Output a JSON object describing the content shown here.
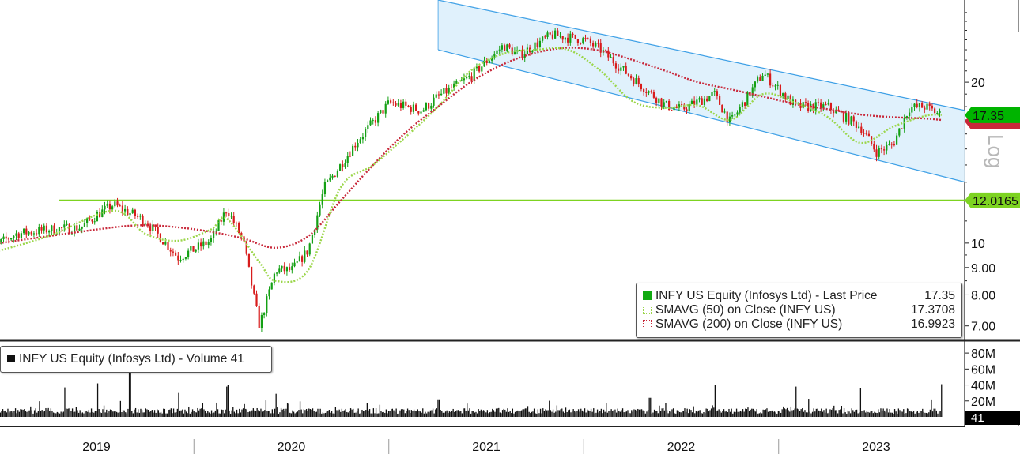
{
  "chart_data": [
    {
      "type": "line",
      "title": "",
      "scale": "log",
      "ylim": [
        6.6,
        28.5
      ],
      "y_ticks": [
        "20",
        "10",
        "9.00",
        "8.00",
        "7.00"
      ],
      "y_tick_values": [
        20,
        10,
        9,
        8,
        7
      ],
      "x_ticks": [
        "2019",
        "2020",
        "2021",
        "2022",
        "2023"
      ],
      "log_label": "Log",
      "series": [
        {
          "name": "INFY US Equity (Infosys Ltd) - Last Price",
          "style": "candlestick",
          "last_value": "17.35",
          "x": [
            "2018-11",
            "2019-01",
            "2019-03",
            "2019-05",
            "2019-06",
            "2019-07",
            "2019-09",
            "2019-11",
            "2020-01",
            "2020-02",
            "2020-03",
            "2020-04",
            "2020-05",
            "2020-06",
            "2020-07",
            "2020-08",
            "2020-09",
            "2020-10",
            "2020-12",
            "2021-02",
            "2021-03",
            "2021-05",
            "2021-07",
            "2021-08",
            "2021-09",
            "2021-10",
            "2021-12",
            "2022-01",
            "2022-03",
            "2022-05",
            "2022-06",
            "2022-08",
            "2022-09",
            "2022-11",
            "2023-01",
            "2023-03",
            "2023-05",
            "2023-06",
            "2023-07",
            "2023-08",
            "2023-09",
            "2023-10"
          ],
          "values": [
            9.6,
            10.4,
            10.6,
            10.7,
            11.3,
            11.8,
            11.0,
            9.4,
            10.1,
            11.6,
            10.1,
            7.0,
            8.9,
            8.9,
            9.7,
            12.7,
            14.0,
            15.5,
            18.3,
            17.7,
            18.8,
            20.5,
            23.4,
            22.5,
            23.5,
            24.5,
            24.0,
            23.0,
            20.3,
            18.1,
            17.8,
            19.0,
            16.8,
            20.8,
            18.0,
            18.0,
            16.5,
            14.8,
            15.3,
            17.9,
            18.0,
            17.35
          ]
        },
        {
          "name": "SMAVG (50)  on Close (INFY US)",
          "last_value": "17.3708",
          "color": "#9bd64a",
          "x": [
            "2018-11",
            "2019-03",
            "2019-07",
            "2019-09",
            "2019-11",
            "2020-01",
            "2020-02",
            "2020-04",
            "2020-05",
            "2020-07",
            "2020-09",
            "2020-11",
            "2021-01",
            "2021-03",
            "2021-05",
            "2021-07",
            "2021-09",
            "2021-11",
            "2022-01",
            "2022-03",
            "2022-05",
            "2022-07",
            "2022-09",
            "2022-11",
            "2023-01",
            "2023-03",
            "2023-05",
            "2023-07",
            "2023-09",
            "2023-10"
          ],
          "values": [
            9.5,
            10.3,
            11.5,
            10.4,
            10.1,
            10.6,
            11.1,
            9.2,
            8.5,
            8.9,
            12.7,
            14.0,
            15.8,
            18.0,
            21.0,
            22.6,
            23.0,
            23.0,
            21.0,
            18.4,
            17.9,
            18.1,
            17.0,
            19.0,
            18.3,
            17.2,
            15.4,
            16.5,
            17.3,
            17.37
          ]
        },
        {
          "name": "SMAVG (200)  on Close (INFY US)",
          "last_value": "16.9923",
          "color": "#c8283a",
          "x": [
            "2018-11",
            "2019-03",
            "2019-07",
            "2019-09",
            "2019-11",
            "2020-01",
            "2020-03",
            "2020-05",
            "2020-07",
            "2020-09",
            "2020-11",
            "2021-01",
            "2021-03",
            "2021-05",
            "2021-07",
            "2021-09",
            "2021-11",
            "2022-01",
            "2022-03",
            "2022-05",
            "2022-07",
            "2022-09",
            "2022-11",
            "2023-01",
            "2023-03",
            "2023-05",
            "2023-07",
            "2023-09",
            "2023-10"
          ],
          "values": [
            9.9,
            10.3,
            10.7,
            10.8,
            10.7,
            10.5,
            10.2,
            9.8,
            10.3,
            12.0,
            14.0,
            16.1,
            18.0,
            20.0,
            21.6,
            22.7,
            23.2,
            22.9,
            22.0,
            21.0,
            20.0,
            19.4,
            18.8,
            18.2,
            17.8,
            17.4,
            17.2,
            17.1,
            16.99
          ]
        }
      ],
      "reference_line": {
        "value": 12.0165,
        "label": "12.0165",
        "color": "#7dd321"
      },
      "last_price_tag": {
        "label": "17.35",
        "color": "#00b400"
      },
      "channel": {
        "start": "2021-03",
        "end": "2023-10",
        "upper": [
          28.5,
          17.7
        ],
        "lower": [
          23.0,
          13.0
        ],
        "fill": "#dbeefb",
        "stroke": "#3ea0e6"
      },
      "legend": [
        {
          "label": "INFY US Equity (Infosys Ltd) - Last Price",
          "value": "17.35",
          "swatch": "#11aa11"
        },
        {
          "label": "SMAVG (50)  on Close (INFY US)",
          "value": "17.3708",
          "swatch": "#9bd64a"
        },
        {
          "label": "SMAVG (200)  on Close (INFY US)",
          "value": "16.9923",
          "swatch": "#c8283a"
        }
      ],
      "legend_position": "bottom-right"
    },
    {
      "type": "bar",
      "title": "",
      "series": [
        {
          "name": "INFY US Equity (Infosys Ltd) - Volume",
          "last_value": "41",
          "x": [
            "2018-11",
            "2019-04",
            "2019-06",
            "2019-08",
            "2019-11",
            "2020-02",
            "2020-05",
            "2021-03",
            "2022-04",
            "2022-08",
            "2023-01",
            "2023-05",
            "2023-10"
          ],
          "values": [
            35,
            37,
            42,
            60,
            30,
            38,
            29,
            22,
            24,
            40,
            38,
            36,
            41
          ]
        }
      ],
      "y_ticks": [
        "80M",
        "60M",
        "40M",
        "20M"
      ],
      "y_tick_values": [
        80,
        60,
        40,
        20
      ],
      "ylim": [
        0,
        90
      ],
      "legend": [
        {
          "label": "INFY US Equity (Infosys Ltd) - Volume 41",
          "swatch": "#111111"
        }
      ],
      "legend_position": "top-left"
    }
  ]
}
